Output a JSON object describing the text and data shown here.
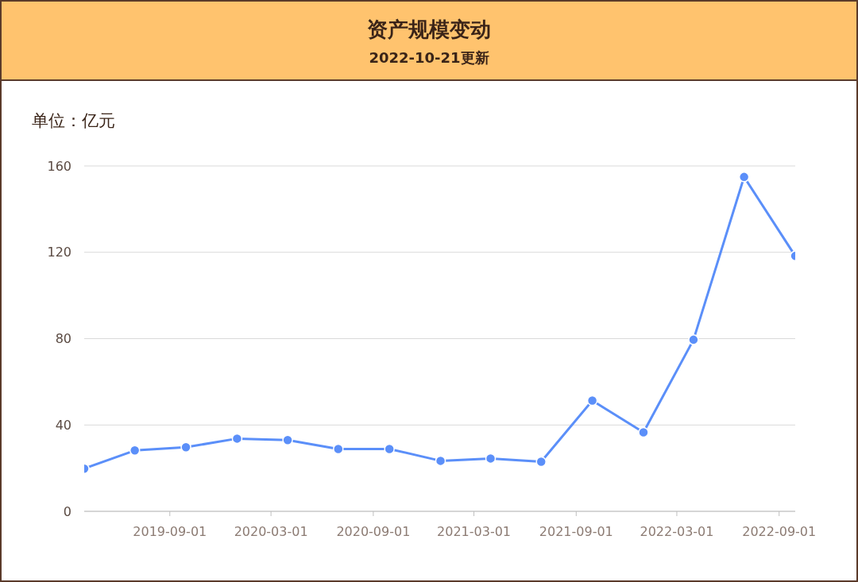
{
  "chart_data": {
    "type": "line",
    "title": "资产规模变动",
    "subtitle": "2022-10-21更新",
    "ylabel": "单位：亿元",
    "x": [
      "2019-03-31",
      "2019-06-30",
      "2019-09-30",
      "2019-12-31",
      "2020-03-31",
      "2020-06-30",
      "2020-09-30",
      "2020-12-31",
      "2021-03-31",
      "2021-06-30",
      "2021-09-30",
      "2021-12-31",
      "2022-03-31",
      "2022-06-30",
      "2022-09-30"
    ],
    "series": [
      {
        "color": "#5b8ff9",
        "values": [
          19.8,
          28.2,
          29.7,
          33.7,
          33.0,
          28.9,
          28.9,
          23.4,
          24.5,
          23.0,
          51.3,
          36.6,
          79.5,
          154.9,
          118.3
        ]
      }
    ],
    "xlim": [
      "2019-03-31",
      "2022-09-30"
    ],
    "xticks": [
      "2019-09-01",
      "2020-03-01",
      "2020-09-01",
      "2021-03-01",
      "2021-09-01",
      "2022-03-01",
      "2022-09-01"
    ],
    "ylim": [
      0,
      160
    ],
    "yticks": [
      0,
      40,
      80,
      120,
      160
    ],
    "grid": "y",
    "marker": "circle",
    "line_style": "solid",
    "legend": false
  }
}
